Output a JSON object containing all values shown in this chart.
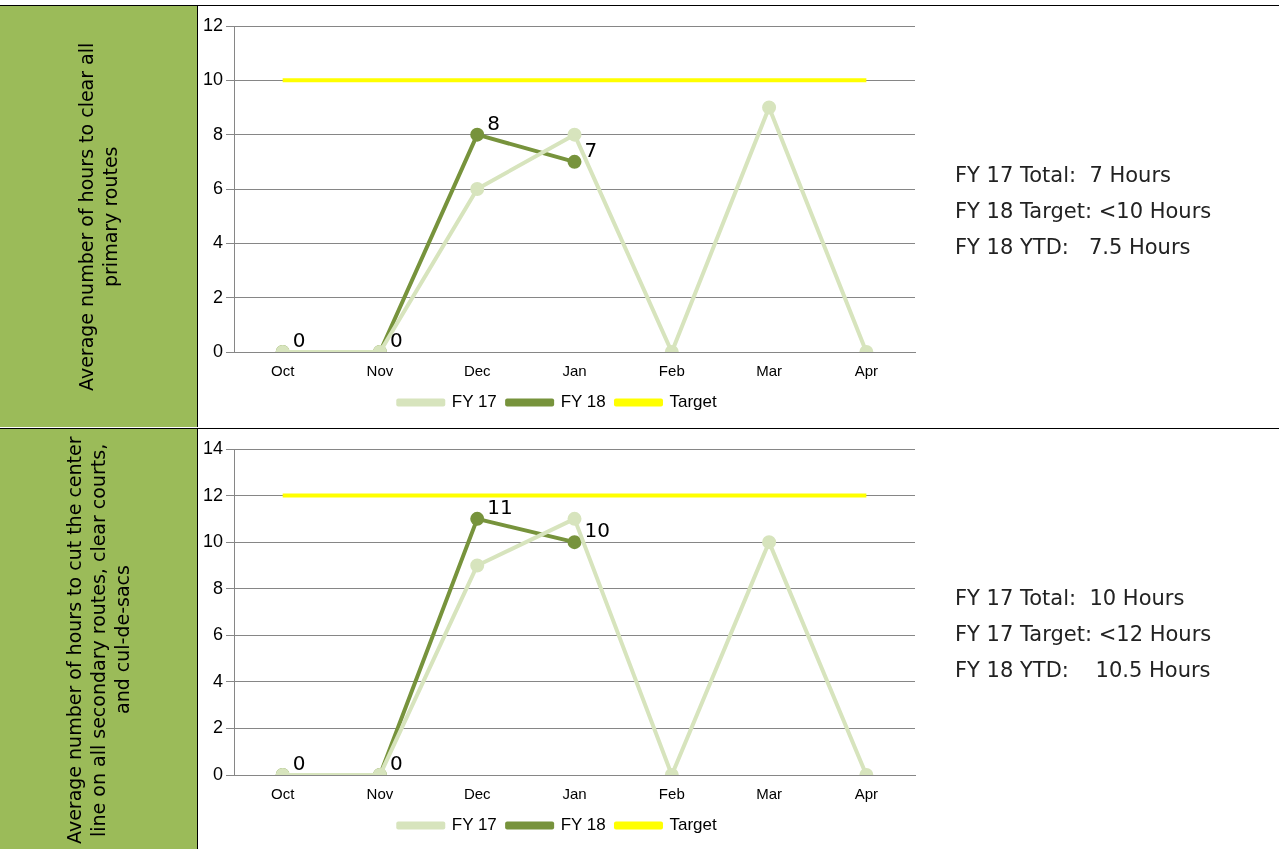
{
  "chart_data": [
    {
      "type": "line",
      "ylabel": "Average number of hours to clear all primary routes",
      "categories": [
        "Oct",
        "Nov",
        "Dec",
        "Jan",
        "Feb",
        "Mar",
        "Apr"
      ],
      "series": [
        {
          "name": "FY 17",
          "color": "#d7e4bd",
          "values": [
            0,
            0,
            6,
            8,
            0,
            9,
            0
          ],
          "marker": "circle"
        },
        {
          "name": "FY 18",
          "color": "#77933c",
          "values": [
            0,
            0,
            8,
            7,
            null,
            null,
            null
          ],
          "marker": "circle",
          "value_labels": [
            "0",
            "0",
            "8",
            "7",
            null,
            null,
            null
          ]
        },
        {
          "name": "Target",
          "color": "#ffff00",
          "values": [
            10,
            10,
            10,
            10,
            10,
            10,
            10
          ],
          "marker": "none"
        }
      ],
      "ylim": [
        0,
        12
      ],
      "yticks": [
        0,
        2,
        4,
        6,
        8,
        10,
        12
      ],
      "grid": "y",
      "legend": "bottom",
      "annotations": [
        "FY 17 Total:  7 Hours",
        "FY 18 Target: <10 Hours",
        "FY 18 YTD:   7.5 Hours"
      ]
    },
    {
      "type": "line",
      "ylabel": "Average number of hours to cut the center line on all secondary routes, clear courts, and cul-de-sacs",
      "categories": [
        "Oct",
        "Nov",
        "Dec",
        "Jan",
        "Feb",
        "Mar",
        "Apr"
      ],
      "series": [
        {
          "name": "FY 17",
          "color": "#d7e4bd",
          "values": [
            0,
            0,
            9,
            11,
            0,
            10,
            0
          ],
          "marker": "circle"
        },
        {
          "name": "FY 18",
          "color": "#77933c",
          "values": [
            0,
            0,
            11,
            10,
            null,
            null,
            null
          ],
          "marker": "circle",
          "value_labels": [
            "0",
            "0",
            "11",
            "10",
            null,
            null,
            null
          ]
        },
        {
          "name": "Target",
          "color": "#ffff00",
          "values": [
            12,
            12,
            12,
            12,
            12,
            12,
            12
          ],
          "marker": "none"
        }
      ],
      "ylim": [
        0,
        14
      ],
      "yticks": [
        0,
        2,
        4,
        6,
        8,
        10,
        12,
        14
      ],
      "grid": "y",
      "legend": "bottom",
      "annotations": [
        "FY 17 Total:  10 Hours",
        "FY 17 Target: <12 Hours",
        "FY 18 YTD:    10.5 Hours"
      ]
    }
  ]
}
